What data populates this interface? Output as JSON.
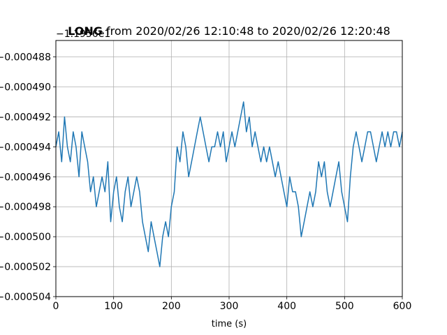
{
  "chart_data": {
    "type": "line",
    "title_bold": "LONG",
    "title_rest": " from 2020/02/26 12:10:48 to 2020/02/26 12:20:48",
    "offset_text": "−1.1956e1",
    "xlabel": "time (s)",
    "ylabel": "",
    "xlim": [
      0,
      600
    ],
    "ylim": [
      -0.000504,
      -0.0004869
    ],
    "grid": true,
    "line_color": "#1f77b4",
    "x_ticks": [
      0,
      100,
      200,
      300,
      400,
      500,
      600
    ],
    "y_ticks": [
      -0.000504,
      -0.000502,
      -0.0005,
      -0.000498,
      -0.000496,
      -0.000494,
      -0.000492,
      -0.00049,
      -0.000488
    ],
    "x_tick_labels": [
      "0",
      "100",
      "200",
      "300",
      "400",
      "500",
      "600"
    ],
    "y_tick_labels": [
      "−0.000504",
      "−0.000502",
      "−0.000500",
      "−0.000498",
      "−0.000496",
      "−0.000494",
      "−0.000492",
      "−0.000490",
      "−0.000488"
    ],
    "series": [
      {
        "x": [
          0,
          5,
          10,
          15,
          20,
          25,
          30,
          35,
          40,
          45,
          50,
          55,
          60,
          65,
          70,
          75,
          80,
          85,
          90,
          95,
          100,
          105,
          110,
          115,
          120,
          125,
          130,
          135,
          140,
          145,
          150,
          155,
          160,
          165,
          170,
          175,
          180,
          185,
          190,
          195,
          200,
          205,
          210,
          215,
          220,
          225,
          230,
          235,
          240,
          245,
          250,
          255,
          260,
          265,
          270,
          275,
          280,
          285,
          290,
          295,
          300,
          305,
          310,
          315,
          320,
          325,
          330,
          335,
          340,
          345,
          350,
          355,
          360,
          365,
          370,
          375,
          380,
          385,
          390,
          395,
          400,
          405,
          410,
          415,
          420,
          425,
          430,
          435,
          440,
          445,
          450,
          455,
          460,
          465,
          470,
          475,
          480,
          485,
          490,
          495,
          500,
          505,
          510,
          515,
          520,
          525,
          530,
          535,
          540,
          545,
          550,
          555,
          560,
          565,
          570,
          575,
          580,
          585,
          590,
          595,
          600
        ],
        "values": [
          -0.000494,
          -0.000493,
          -0.000495,
          -0.000492,
          -0.000494,
          -0.000495,
          -0.000493,
          -0.000494,
          -0.000496,
          -0.000493,
          -0.000494,
          -0.000495,
          -0.000497,
          -0.000496,
          -0.000498,
          -0.000497,
          -0.000496,
          -0.000497,
          -0.000495,
          -0.000499,
          -0.000497,
          -0.000496,
          -0.000498,
          -0.000499,
          -0.000497,
          -0.000496,
          -0.000498,
          -0.000497,
          -0.000496,
          -0.000497,
          -0.000499,
          -0.0005,
          -0.000501,
          -0.000499,
          -0.0005,
          -0.000501,
          -0.000502,
          -0.0005,
          -0.000499,
          -0.0005,
          -0.000498,
          -0.000497,
          -0.000494,
          -0.000495,
          -0.000493,
          -0.000494,
          -0.000496,
          -0.000495,
          -0.000494,
          -0.000493,
          -0.000492,
          -0.000493,
          -0.000494,
          -0.000495,
          -0.000494,
          -0.000494,
          -0.000493,
          -0.000494,
          -0.000493,
          -0.000495,
          -0.000494,
          -0.000493,
          -0.000494,
          -0.000493,
          -0.000492,
          -0.000491,
          -0.000493,
          -0.000492,
          -0.000494,
          -0.000493,
          -0.000494,
          -0.000495,
          -0.000494,
          -0.000495,
          -0.000494,
          -0.000495,
          -0.000496,
          -0.000495,
          -0.000496,
          -0.000497,
          -0.000498,
          -0.000496,
          -0.000497,
          -0.000497,
          -0.000498,
          -0.0005,
          -0.000499,
          -0.000498,
          -0.000497,
          -0.000498,
          -0.000497,
          -0.000495,
          -0.000496,
          -0.000495,
          -0.000497,
          -0.000498,
          -0.000497,
          -0.000496,
          -0.000495,
          -0.000497,
          -0.000498,
          -0.000499,
          -0.000496,
          -0.000494,
          -0.000493,
          -0.000494,
          -0.000495,
          -0.000494,
          -0.000493,
          -0.000493,
          -0.000494,
          -0.000495,
          -0.000494,
          -0.000493,
          -0.000494,
          -0.000493,
          -0.000494,
          -0.000493,
          -0.000493,
          -0.000494,
          -0.000493
        ]
      }
    ]
  }
}
